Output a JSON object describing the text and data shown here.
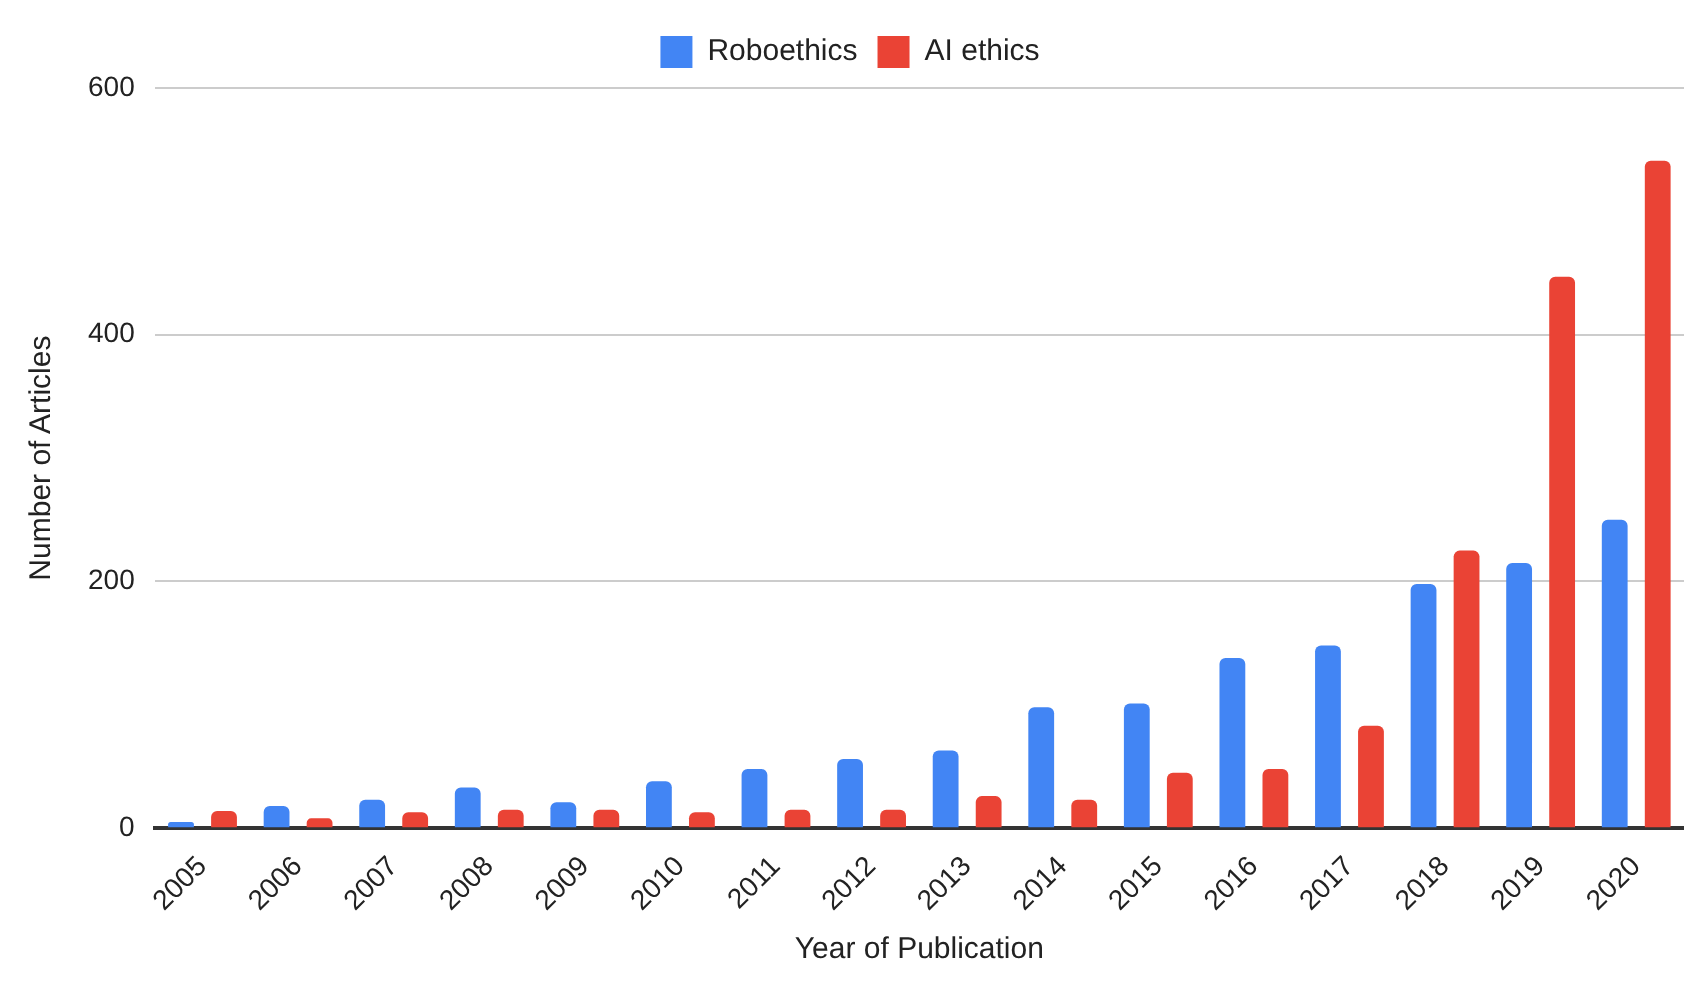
{
  "chart_data": {
    "type": "bar",
    "xlabel": "Year of Publication",
    "ylabel": "Number of Articles",
    "categories": [
      "2005",
      "2006",
      "2007",
      "2008",
      "2009",
      "2010",
      "2011",
      "2012",
      "2013",
      "2014",
      "2015",
      "2016",
      "2017",
      "2018",
      "2019",
      "2020"
    ],
    "series": [
      {
        "name": "Roboethics",
        "color": "#4285f4",
        "values": [
          5,
          18,
          23,
          33,
          21,
          38,
          48,
          56,
          63,
          98,
          101,
          138,
          148,
          198,
          215,
          250
        ]
      },
      {
        "name": "AI ethics",
        "color": "#ea4335",
        "values": [
          14,
          8,
          13,
          15,
          15,
          13,
          15,
          15,
          26,
          23,
          45,
          48,
          83,
          225,
          447,
          541
        ]
      }
    ],
    "ylim": [
      0,
      600
    ],
    "yticks": [
      0,
      200,
      400,
      600
    ],
    "grid": "y",
    "legend": "top"
  }
}
